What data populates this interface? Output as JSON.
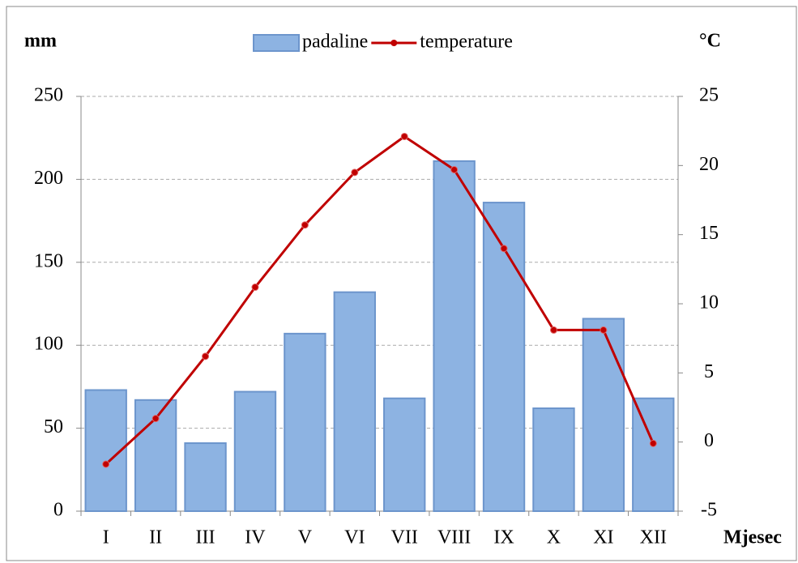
{
  "chart_data": {
    "type": "bar",
    "y_label": "mm",
    "y2_label": "°C",
    "x_label": "Mjesec",
    "categories": [
      "I",
      "II",
      "III",
      "IV",
      "V",
      "VI",
      "VII",
      "VIII",
      "IX",
      "X",
      "XI",
      "XII"
    ],
    "series": [
      {
        "name": "padaline",
        "type": "bar",
        "color": "#8db3e2",
        "values": [
          73,
          67,
          41,
          72,
          107,
          132,
          68,
          211,
          186,
          62,
          116,
          68
        ]
      },
      {
        "name": "temperature",
        "type": "line",
        "axis": "y2",
        "color": "#c00000",
        "values": [
          -1.6,
          1.7,
          6.2,
          11.2,
          15.7,
          19.5,
          22.1,
          19.7,
          14.0,
          8.1,
          8.1,
          -0.1
        ]
      }
    ],
    "ylim": [
      0,
      250
    ],
    "yticks": [
      0,
      50,
      100,
      150,
      200,
      250
    ],
    "y2lim": [
      -5,
      25
    ],
    "y2ticks": [
      -5,
      0,
      5,
      10,
      15,
      20,
      25
    ],
    "grid": true,
    "legend": "top"
  }
}
